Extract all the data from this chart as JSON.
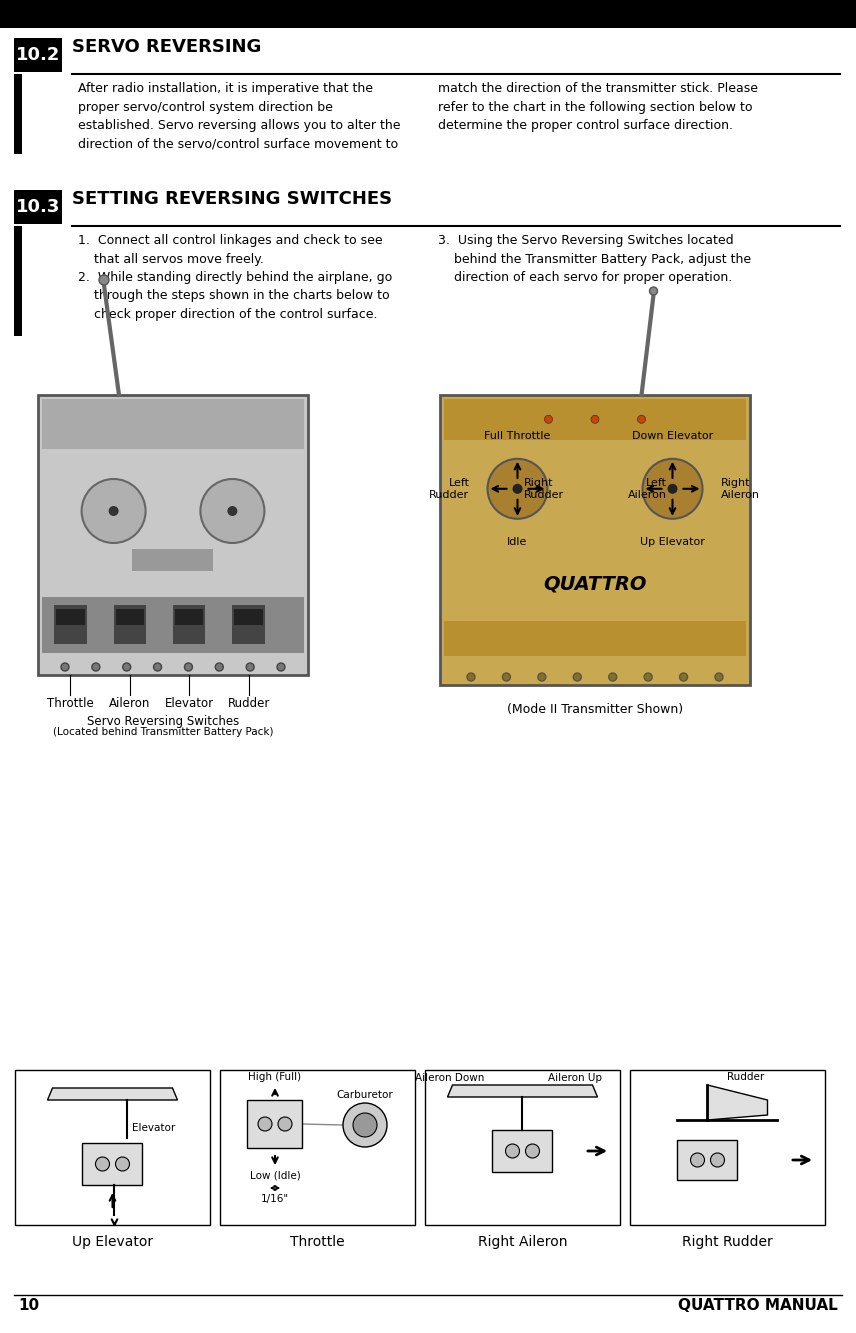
{
  "page_num": "10",
  "page_title": "QUATTRO MANUAL",
  "section_102_num": "10.2",
  "section_102_title": "SERVO REVERSING",
  "section_102_text_left": "After radio installation, it is imperative that the\nproper servo/control system direction be\nestablished. Servo reversing allows you to alter the\ndirection of the servo/control surface movement to",
  "section_102_text_right": "match the direction of the transmitter stick. Please\nrefer to the chart in the following section below to\ndetermine the proper control surface direction.",
  "section_103_num": "10.3",
  "section_103_title": "SETTING REVERSING SWITCHES",
  "section_103_text_left": "1.  Connect all control linkages and check to see\n    that all servos move freely.\n2.  While standing directly behind the airplane, go\n    through the steps shown in the charts below to\n    check proper direction of the control surface.",
  "section_103_text_right": "3.  Using the Servo Reversing Switches located\n    behind the Transmitter Battery Pack, adjust the\n    direction of each servo for proper operation.",
  "servo_label_line1": "Servo Reversing Switches",
  "servo_label_line2": "(Located behind Transmitter Battery Pack)",
  "servo_switch_labels": [
    "Throttle",
    "Aileron",
    "Elevator",
    "Rudder"
  ],
  "mode_label": "(Mode II Transmitter Shown)",
  "lbl_full_throttle": "Full Throttle",
  "lbl_idle": "Idle",
  "lbl_left_rudder": "Left\nRudder",
  "lbl_right_rudder": "Right\nRudder",
  "lbl_left_aileron": "Left\nAileron",
  "lbl_right_aileron": "Right\nAileron",
  "lbl_up_elevator": "Up Elevator",
  "lbl_down_elevator": "Down Elevator",
  "bottom_labels": [
    "Up Elevator",
    "Throttle",
    "Right Aileron",
    "Right Rudder"
  ],
  "lbl_elevator": "Elevator",
  "lbl_carburetor": "Carburetor",
  "lbl_high": "High (Full)",
  "lbl_low": "Low (Idle)",
  "lbl_inch": "1/16\"",
  "lbl_aileron_down": "Aileron Down",
  "lbl_aileron_up": "Aileron Up",
  "lbl_rudder": "Rudder",
  "bg_color": "#ffffff"
}
